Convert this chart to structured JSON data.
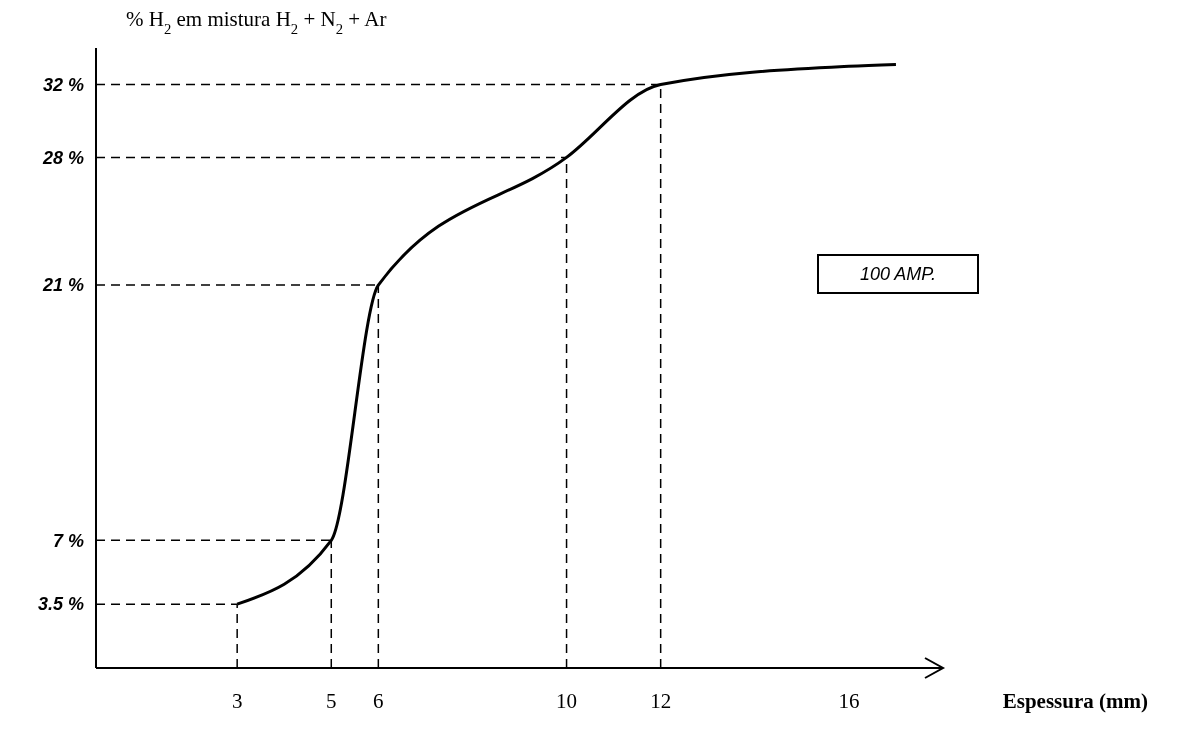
{
  "chart_data": {
    "type": "line",
    "ylabel": "% H$_{2}$ em mistura H$_{2}$ + N$_{2}$ + Ar",
    "xlabel": "Espessura (mm)",
    "annotations": [
      "100 AMP."
    ],
    "x": [
      3,
      5,
      6,
      10,
      12,
      16,
      17
    ],
    "series": [
      {
        "color": "#000000",
        "values": [
          3.5,
          7,
          21,
          28,
          32,
          33,
          33.1
        ]
      }
    ],
    "xlim": [
      0,
      18
    ],
    "xticks": [
      3,
      5,
      6,
      10,
      12,
      16
    ],
    "ylim": [
      0,
      34
    ],
    "yticks": [
      {
        "value": 3.5,
        "label": "3.5 %"
      },
      {
        "value": 7,
        "label": "7 %"
      },
      {
        "value": 21,
        "label": "21 %"
      },
      {
        "value": 28,
        "label": "28 %"
      },
      {
        "value": 32,
        "label": "32 %"
      }
    ],
    "ref_lines": [
      {
        "axis": "x",
        "value": 3,
        "line_style": "dashed"
      },
      {
        "axis": "x",
        "value": 5,
        "line_style": "dashed"
      },
      {
        "axis": "x",
        "value": 6,
        "line_style": "dashed"
      },
      {
        "axis": "x",
        "value": 10,
        "line_style": "dashed"
      },
      {
        "axis": "x",
        "value": 12,
        "line_style": "dashed"
      },
      {
        "axis": "y",
        "value": 3.5,
        "line_style": "dashed"
      },
      {
        "axis": "y",
        "value": 7,
        "line_style": "dashed"
      },
      {
        "axis": "y",
        "value": 21,
        "line_style": "dashed"
      },
      {
        "axis": "y",
        "value": 28,
        "line_style": "dashed"
      },
      {
        "axis": "y",
        "value": 32,
        "line_style": "dashed"
      }
    ],
    "line_style": "solid",
    "marker": "none",
    "grid": false
  }
}
